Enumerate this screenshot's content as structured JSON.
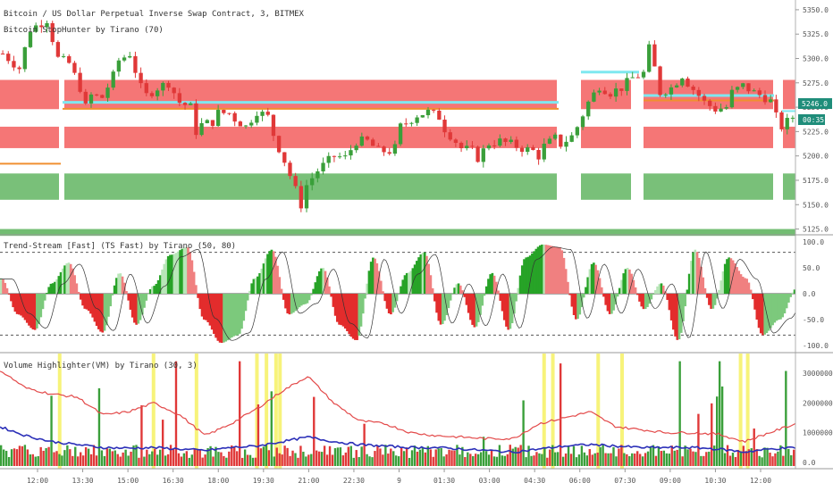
{
  "chart_data": [
    {
      "type": "candlestick",
      "title": "Bitcoin / US Dollar Perpetual Inverse Swap Contract, 3, BITMEX",
      "subtitle": "Bitcoin StopHunter by Tirano (70)",
      "ylim": [
        5120,
        5360
      ],
      "y_ticks": [
        "5350.0",
        "5325.0",
        "5300.0",
        "5275.0",
        "5250.0",
        "5225.0",
        "5200.0",
        "5175.0",
        "5150.0",
        "5125.0"
      ],
      "last_price": "5246.0",
      "countdown": "00:35",
      "resistance_zones": [
        [
          5248,
          5278
        ],
        [
          5208,
          5230
        ]
      ],
      "support_zone": [
        5155,
        5182
      ],
      "lower_support": [
        5118,
        5125
      ],
      "stop_levels": [
        5255,
        5252
      ],
      "path": [
        [
          0,
          5305
        ],
        [
          3,
          5290
        ],
        [
          5,
          5330
        ],
        [
          8,
          5340
        ],
        [
          10,
          5300
        ],
        [
          12,
          5295
        ],
        [
          14,
          5270
        ],
        [
          15,
          5250
        ],
        [
          16,
          5262
        ],
        [
          18,
          5260
        ],
        [
          20,
          5282
        ],
        [
          21,
          5298
        ],
        [
          23,
          5305
        ],
        [
          25,
          5270
        ],
        [
          26,
          5262
        ],
        [
          28,
          5270
        ],
        [
          30,
          5275
        ],
        [
          32,
          5255
        ],
        [
          34,
          5250
        ],
        [
          35,
          5225
        ],
        [
          36,
          5232
        ],
        [
          38,
          5235
        ],
        [
          39,
          5244
        ],
        [
          41,
          5244
        ],
        [
          42,
          5238
        ],
        [
          44,
          5230
        ],
        [
          46,
          5246
        ],
        [
          48,
          5240
        ],
        [
          49,
          5222
        ],
        [
          50,
          5208
        ],
        [
          51,
          5195
        ],
        [
          53,
          5165
        ],
        [
          54,
          5150
        ],
        [
          55,
          5170
        ],
        [
          57,
          5185
        ],
        [
          59,
          5195
        ],
        [
          60,
          5200
        ],
        [
          62,
          5198
        ],
        [
          64,
          5215
        ],
        [
          66,
          5215
        ],
        [
          68,
          5205
        ],
        [
          70,
          5205
        ],
        [
          71,
          5208
        ],
        [
          72,
          5230
        ],
        [
          74,
          5238
        ],
        [
          75,
          5242
        ],
        [
          77,
          5245
        ],
        [
          79,
          5240
        ],
        [
          80,
          5228
        ],
        [
          82,
          5215
        ],
        [
          83,
          5208
        ],
        [
          85,
          5205
        ],
        [
          86,
          5198
        ],
        [
          88,
          5213
        ],
        [
          90,
          5215
        ],
        [
          92,
          5212
        ],
        [
          94,
          5208
        ],
        [
          96,
          5205
        ],
        [
          97,
          5200
        ],
        [
          98,
          5210
        ],
        [
          100,
          5218
        ],
        [
          101,
          5212
        ],
        [
          103,
          5220
        ],
        [
          104,
          5230
        ],
        [
          106,
          5255
        ],
        [
          108,
          5272
        ],
        [
          110,
          5265
        ],
        [
          112,
          5270
        ],
        [
          114,
          5280
        ],
        [
          116,
          5285
        ],
        [
          117,
          5310
        ],
        [
          118,
          5290
        ],
        [
          119,
          5265
        ],
        [
          121,
          5270
        ],
        [
          123,
          5283
        ],
        [
          124,
          5275
        ],
        [
          126,
          5262
        ],
        [
          127,
          5255
        ],
        [
          129,
          5248
        ],
        [
          131,
          5250
        ],
        [
          132,
          5265
        ],
        [
          134,
          5272
        ],
        [
          136,
          5265
        ],
        [
          138,
          5260
        ],
        [
          139,
          5256
        ],
        [
          140,
          5240
        ],
        [
          141,
          5230
        ],
        [
          143,
          5240
        ]
      ]
    },
    {
      "type": "area",
      "title": "Trend-Stream [Fast] (TS Fast) by Tirano (50, 80)",
      "ylim": [
        -100,
        100
      ],
      "y_ticks": [
        "100.0",
        "50.0",
        "0.0",
        "-50.0",
        "-100.0"
      ],
      "levels": [
        80,
        -80
      ],
      "values": [
        30,
        -40,
        -70,
        20,
        60,
        -30,
        -75,
        40,
        -60,
        15,
        75,
        90,
        -50,
        -95,
        -80,
        30,
        85,
        -40,
        -20,
        50,
        -60,
        -90,
        70,
        -40,
        40,
        80,
        -60,
        20,
        -65,
        40,
        -70,
        70,
        95,
        90,
        -50,
        60,
        -40,
        50,
        -30,
        20,
        -90,
        85,
        -30,
        70,
        30,
        -80,
        -50,
        10
      ]
    },
    {
      "type": "bar",
      "title": "Volume Highlighter(VM) by Tirano (30, 3)",
      "ylim": [
        -2000000,
        35000000
      ],
      "y_ticks": [
        "30000000.0",
        "20000000.0",
        "10000000.0",
        "0.0"
      ],
      "highlight_positions": [
        0.075,
        0.193,
        0.247,
        0.323,
        0.335,
        0.347,
        0.352,
        0.684,
        0.695,
        0.752,
        0.782,
        0.931,
        0.94
      ],
      "series": [
        {
          "name": "",
          "color": "#e34a4a",
          "values": [
            31000000,
            25000000,
            23000000,
            22000000,
            16000000,
            17000000,
            20000000,
            16000000,
            9000000,
            13000000,
            18000000,
            24000000,
            29000000,
            20000000,
            14000000,
            13000000,
            10000000,
            9000000,
            8500000,
            8000000,
            8000000,
            13000000,
            15000000,
            17000000,
            12000000,
            11000000,
            10000000,
            10000000,
            9500000,
            7000000,
            10000000,
            13000000
          ]
        },
        {
          "name": "",
          "color": "#2b2fb8",
          "values": [
            12000000,
            9000000,
            7000000,
            6000000,
            5000000,
            4800000,
            5000000,
            4500000,
            4000000,
            5000000,
            5500000,
            7000000,
            8500000,
            7000000,
            6000000,
            5500000,
            5000000,
            5000000,
            4500000,
            4000000,
            3500000,
            4500000,
            5500000,
            6000000,
            5500000,
            5000000,
            5000000,
            5000000,
            4500000,
            3500000,
            4500000,
            5000000
          ]
        }
      ]
    }
  ],
  "x_axis": {
    "ticks": [
      "12:00",
      "13:30",
      "15:00",
      "16:30",
      "18:00",
      "19:30",
      "21:00",
      "22:30",
      "9",
      "01:30",
      "03:00",
      "04:30",
      "06:00",
      "07:30",
      "09:00",
      "10:30",
      "12:00"
    ]
  },
  "colors": {
    "up": "#26a69a",
    "bull": "#3a9f3a",
    "bear": "#e03838",
    "zone_red": "#f46f6f",
    "zone_green": "#72bd72",
    "cyan": "#7fe8f0",
    "orange": "#f09030",
    "highlight": "#f7f37a"
  }
}
